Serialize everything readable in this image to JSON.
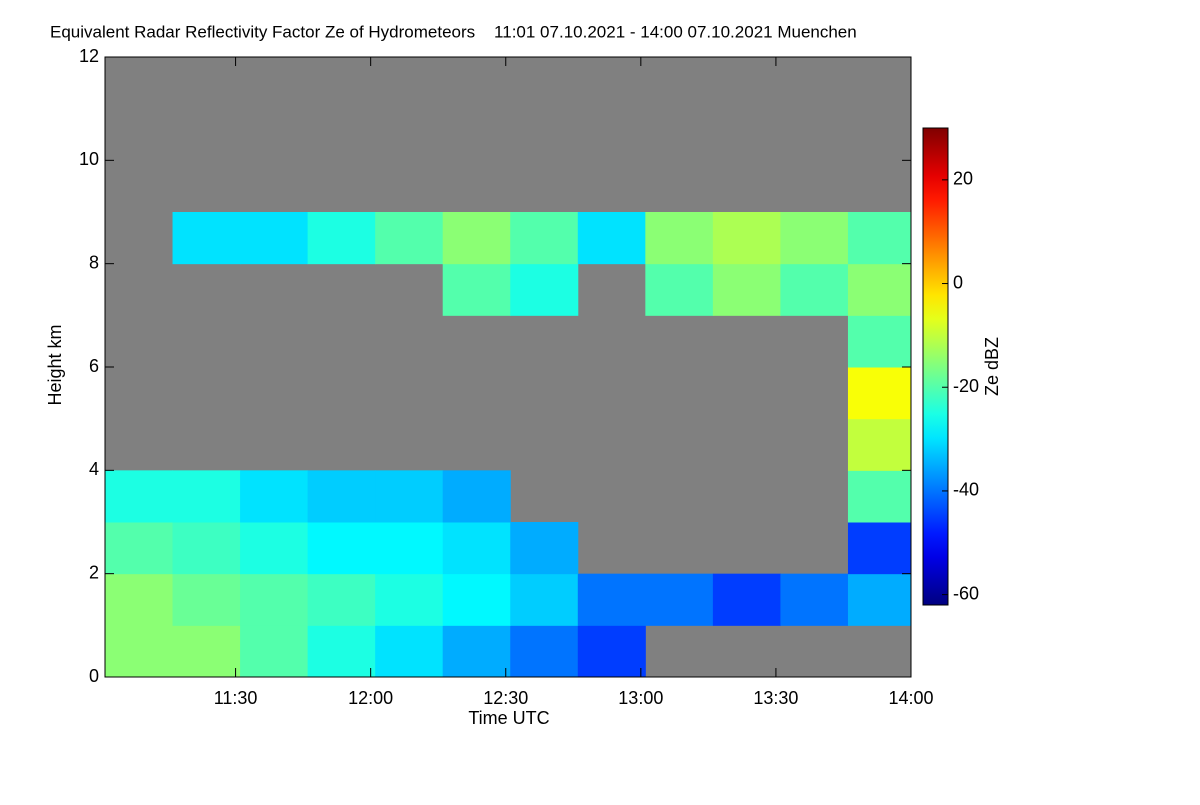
{
  "chart_data": {
    "type": "heatmap",
    "title": "Equivalent Radar Reflectivity Factor Ze of Hydrometeors    11:01 07.10.2021 - 14:00 07.10.2021 Muenchen",
    "xlabel": "Time UTC",
    "ylabel": "Height km",
    "xlim": [
      661,
      840
    ],
    "xticks": [
      {
        "value": 690,
        "label": "11:30"
      },
      {
        "value": 720,
        "label": "12:00"
      },
      {
        "value": 750,
        "label": "12:30"
      },
      {
        "value": 780,
        "label": "13:00"
      },
      {
        "value": 810,
        "label": "13:30"
      },
      {
        "value": 840,
        "label": "14:00"
      }
    ],
    "ylim": [
      0,
      12
    ],
    "yticks": [
      0,
      2,
      4,
      6,
      8,
      10,
      12
    ],
    "x_edges": [
      661,
      676,
      691,
      706,
      721,
      736,
      751,
      766,
      781,
      796,
      811,
      826,
      840
    ],
    "y_edges": [
      0,
      1,
      2,
      3,
      4,
      5,
      6,
      7,
      8,
      9,
      10,
      11,
      12
    ],
    "z": [
      [
        -15,
        -15,
        -20,
        -25,
        -30,
        -35,
        -40,
        -45,
        null,
        null,
        null,
        null
      ],
      [
        -15,
        -18,
        -20,
        -22,
        -25,
        -28,
        -32,
        -40,
        -40,
        -45,
        -40,
        -35
      ],
      [
        -20,
        -22,
        -25,
        -28,
        -28,
        -30,
        -35,
        null,
        null,
        null,
        null,
        -45
      ],
      [
        -25,
        -25,
        -30,
        -32,
        -32,
        -35,
        null,
        null,
        null,
        null,
        null,
        -20
      ],
      [
        null,
        null,
        null,
        null,
        null,
        null,
        null,
        null,
        null,
        null,
        null,
        -10
      ],
      [
        null,
        null,
        null,
        null,
        null,
        null,
        null,
        null,
        null,
        null,
        null,
        -5
      ],
      [
        null,
        null,
        null,
        null,
        null,
        null,
        null,
        null,
        null,
        null,
        null,
        -20
      ],
      [
        null,
        null,
        null,
        null,
        null,
        -20,
        -25,
        null,
        -20,
        -15,
        -20,
        -15
      ],
      [
        null,
        -30,
        -30,
        -25,
        -20,
        -15,
        -20,
        -30,
        -15,
        -12,
        -15,
        -20
      ],
      [
        null,
        null,
        null,
        null,
        null,
        null,
        null,
        null,
        null,
        null,
        null,
        null
      ],
      [
        null,
        null,
        null,
        null,
        null,
        null,
        null,
        null,
        null,
        null,
        null,
        null
      ],
      [
        null,
        null,
        null,
        null,
        null,
        null,
        null,
        null,
        null,
        null,
        null,
        null
      ]
    ],
    "background": "#808080",
    "colorbar": {
      "label": "Ze dBZ",
      "lim": [
        -62,
        30
      ],
      "ticks": [
        -60,
        -40,
        -20,
        0,
        20
      ]
    }
  }
}
